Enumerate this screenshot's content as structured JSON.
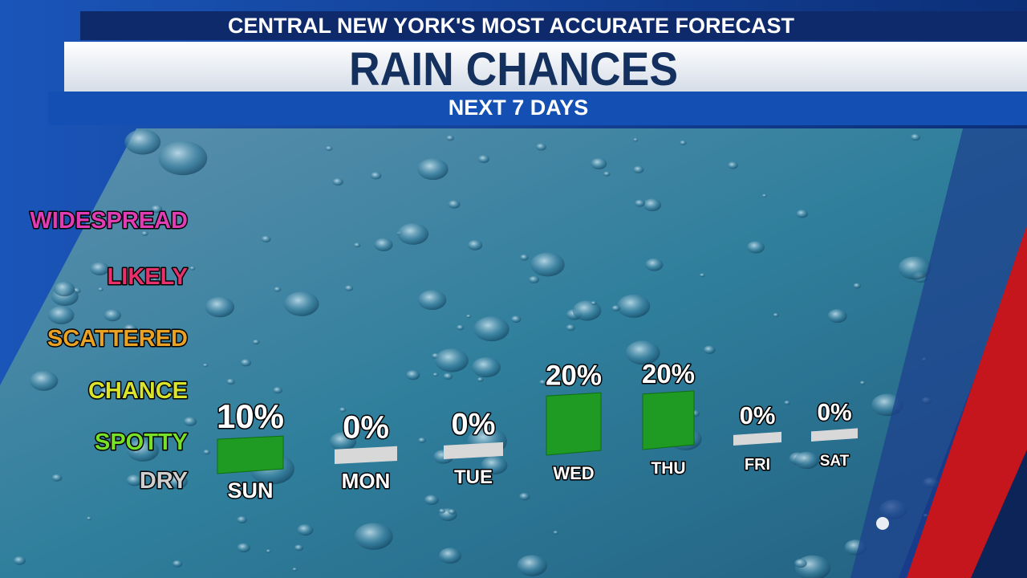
{
  "chart_data": {
    "type": "bar",
    "supertitle": "CENTRAL NEW YORK'S MOST ACCURATE FORECAST",
    "title": "RAIN CHANCES",
    "subtitle": "NEXT 7 DAYS",
    "levels": [
      {
        "label": "WIDESPREAD",
        "color": "#e23cb4"
      },
      {
        "label": "LIKELY",
        "color": "#e8306c"
      },
      {
        "label": "SCATTERED",
        "color": "#eaa224"
      },
      {
        "label": "CHANCE",
        "color": "#d9e42a"
      },
      {
        "label": "SPOTTY",
        "color": "#78e028"
      },
      {
        "label": "DRY",
        "color": "#cfcfcf"
      }
    ],
    "categories": [
      "SUN",
      "MON",
      "TUE",
      "WED",
      "THU",
      "FRI",
      "SAT"
    ],
    "values": [
      10,
      0,
      0,
      20,
      20,
      0,
      0
    ],
    "value_labels": [
      "10%",
      "0%",
      "0%",
      "20%",
      "20%",
      "0%",
      "0%"
    ],
    "color": "#1f9a22",
    "zero_color": "#d8d8d8"
  }
}
